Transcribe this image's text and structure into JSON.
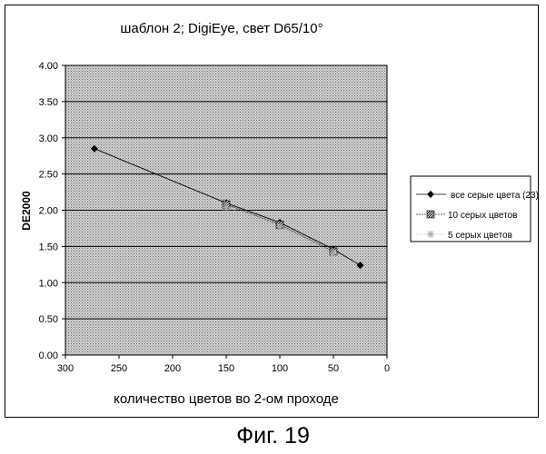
{
  "chart_data": {
    "type": "line",
    "title": "шаблон 2; DigiEye, свет D65/10°",
    "xlabel": "количество цветов во 2-ом проходе",
    "ylabel": "DE2000",
    "xlim": [
      300,
      0
    ],
    "ylim": [
      0,
      4
    ],
    "x_reversed": true,
    "x_ticks": [
      "300",
      "250",
      "200",
      "150",
      "100",
      "50",
      "0"
    ],
    "y_ticks": [
      "0.00",
      "0.50",
      "1.00",
      "1.50",
      "2.00",
      "2.50",
      "3.00",
      "3.50",
      "4.00"
    ],
    "grid": true,
    "plot_background": "stippled gray",
    "legend_position": "right",
    "series": [
      {
        "name": "все серые цвета (23)",
        "marker": "diamond",
        "color": "#000000",
        "x": [
          273,
          150,
          100,
          50,
          25
        ],
        "y": [
          2.85,
          2.1,
          1.83,
          1.46,
          1.24
        ]
      },
      {
        "name": "10 серых цветов",
        "marker": "hatched-square",
        "color": "#333333",
        "x": [
          150,
          100,
          50
        ],
        "y": [
          2.08,
          1.8,
          1.43
        ]
      },
      {
        "name": "5 серых цветов",
        "marker": "star",
        "color": "#aaaaaa",
        "x": [
          150,
          100,
          50
        ],
        "y": [
          2.04,
          1.77,
          1.4
        ]
      }
    ]
  },
  "caption": "Фиг. 19"
}
